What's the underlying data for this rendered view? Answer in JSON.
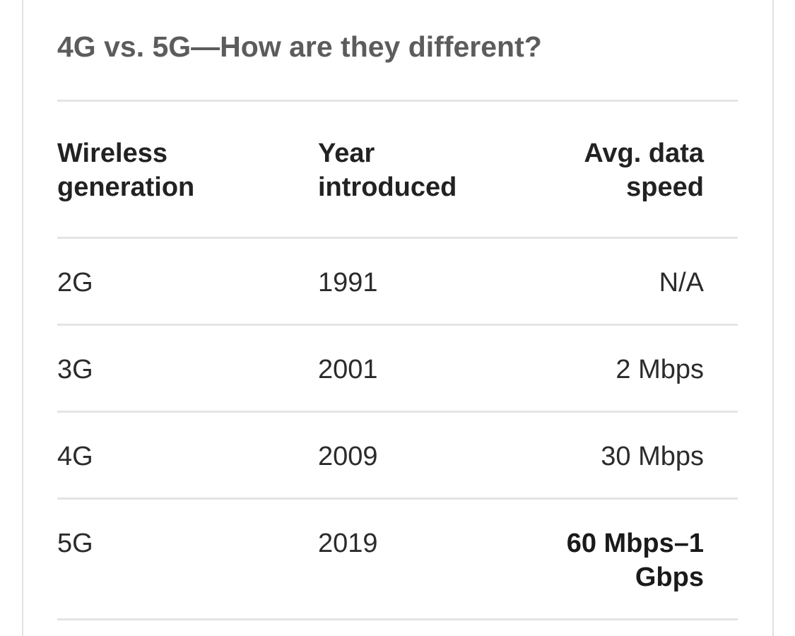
{
  "title": "4G vs. 5G—How are they different?",
  "table": {
    "headers": {
      "generation": [
        "Wireless",
        "generation"
      ],
      "year": [
        "Year",
        "introduced"
      ],
      "speed": [
        "Avg. data",
        "speed"
      ]
    },
    "rows": [
      {
        "generation": "2G",
        "year": "1991",
        "speed": [
          "N/A"
        ]
      },
      {
        "generation": "3G",
        "year": "2001",
        "speed": [
          "2 Mbps"
        ]
      },
      {
        "generation": "4G",
        "year": "2009",
        "speed": [
          "30 Mbps"
        ]
      },
      {
        "generation": "5G",
        "year": "2019",
        "speed": [
          "60 Mbps–1",
          "Gbps"
        ]
      }
    ]
  }
}
